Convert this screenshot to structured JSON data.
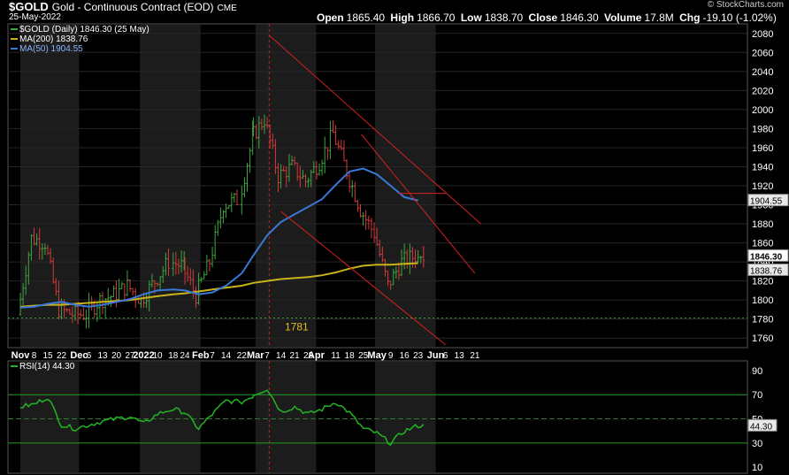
{
  "header": {
    "symbol": "$GOLD",
    "description": "Gold - Continuous Contract (EOD)",
    "exchange": "CME",
    "date": "25-May-2022",
    "brand": "© StockCharts.com",
    "ohlc": {
      "open_label": "Open",
      "open": "1865.40",
      "high_label": "High",
      "high": "1866.70",
      "low_label": "Low",
      "low": "1838.70",
      "close_label": "Close",
      "close": "1846.30",
      "volume_label": "Volume",
      "volume": "17.8M",
      "chg_label": "Chg",
      "chg": "-19.10 (-1.02%)"
    }
  },
  "colors": {
    "background": "#000000",
    "up_bar": "#3ea63e",
    "down_bar": "#d43a3a",
    "ma200": "#c8b41a",
    "ma50": "#3a78d8",
    "channel": "#d42020",
    "rsi_line": "#22b422",
    "band_shade": "#1c1c1c"
  },
  "chart_data": [
    {
      "type": "line",
      "panel": "price",
      "title": "$GOLD (Daily) 1846.30 (25 May)",
      "legend": [
        {
          "name": "$GOLD (Daily) 1846.30 (25 May)",
          "color": "#3ea63e"
        },
        {
          "name": "MA(200) 1838.76",
          "color": "#c8b41a"
        },
        {
          "name": "MA(50) 1904.55",
          "color": "#3a78d8"
        }
      ],
      "ylim": [
        1750,
        2090
      ],
      "yticks": [
        1760,
        1780,
        1800,
        1820,
        1840,
        1860,
        1880,
        1900,
        1920,
        1940,
        1960,
        1980,
        2000,
        2020,
        2040,
        2060,
        2080
      ],
      "x_axis_labels": [
        "Nov",
        "8",
        "15",
        "22",
        "Dec",
        "6",
        "13",
        "20",
        "27",
        "2022",
        "10",
        "18",
        "24",
        "Feb",
        "7",
        "14",
        "22",
        "Mar",
        "7",
        "14",
        "21",
        "28",
        "Apr",
        "11",
        "18",
        "25",
        "May",
        "9",
        "16",
        "23",
        "Jun",
        "6",
        "13",
        "21"
      ],
      "major_labels": [
        "Nov",
        "Dec",
        "2022",
        "Feb",
        "Mar",
        "Apr",
        "May",
        "Jun"
      ],
      "x": [
        "2021-11-01",
        "2021-11-08",
        "2021-11-15",
        "2021-11-22",
        "2021-11-29",
        "2021-12-06",
        "2021-12-13",
        "2021-12-20",
        "2021-12-27",
        "2022-01-03",
        "2022-01-10",
        "2022-01-18",
        "2022-01-24",
        "2022-01-31",
        "2022-02-07",
        "2022-02-14",
        "2022-02-22",
        "2022-02-28",
        "2022-03-07",
        "2022-03-14",
        "2022-03-21",
        "2022-03-28",
        "2022-04-04",
        "2022-04-11",
        "2022-04-18",
        "2022-04-25",
        "2022-05-02",
        "2022-05-09",
        "2022-05-16",
        "2022-05-23"
      ],
      "series": [
        {
          "name": "$GOLD",
          "values": [
            1785,
            1865,
            1860,
            1790,
            1785,
            1785,
            1800,
            1805,
            1815,
            1800,
            1820,
            1840,
            1835,
            1805,
            1840,
            1900,
            1905,
            1970,
            1990,
            1930,
            1940,
            1925,
            1945,
            1975,
            1935,
            1895,
            1870,
            1815,
            1840,
            1846.3
          ]
        },
        {
          "name": "MA(200)",
          "values": [
            1793,
            1794,
            1795,
            1795,
            1796,
            1797,
            1798,
            1799,
            1800,
            1802,
            1804,
            1806,
            1807,
            1809,
            1811,
            1813,
            1815,
            1818,
            1820,
            1822,
            1823,
            1824,
            1826,
            1829,
            1833,
            1836,
            1837,
            1837,
            1838,
            1838.76
          ]
        },
        {
          "name": "MA(50)",
          "values": [
            1792,
            1793,
            1796,
            1798,
            1795,
            1793,
            1795,
            1798,
            1801,
            1806,
            1810,
            1811,
            1810,
            1806,
            1808,
            1815,
            1828,
            1847,
            1868,
            1882,
            1890,
            1898,
            1906,
            1921,
            1935,
            1938,
            1932,
            1920,
            1908,
            1904.55
          ]
        }
      ],
      "annotations": [
        {
          "text": "1781",
          "value": 1781
        }
      ],
      "value_tags": [
        {
          "label": "1904.55",
          "value": 1904.55
        },
        {
          "label": "1846.30",
          "value": 1846.3
        },
        {
          "label": "1838.76",
          "value": 1838.76
        }
      ]
    },
    {
      "type": "line",
      "panel": "indicator",
      "title": "RSI(14) 44.30",
      "legend": [
        {
          "name": "RSI(14) 44.30",
          "color": "#22b422"
        }
      ],
      "ylim": [
        5,
        98
      ],
      "yticks": [
        10,
        30,
        50,
        70,
        90
      ],
      "reference_lines": [
        30,
        50,
        70
      ],
      "x": [
        "2021-11-01",
        "2021-11-08",
        "2021-11-15",
        "2021-11-22",
        "2021-11-29",
        "2021-12-06",
        "2021-12-13",
        "2021-12-20",
        "2021-12-27",
        "2022-01-03",
        "2022-01-10",
        "2022-01-18",
        "2022-01-24",
        "2022-01-31",
        "2022-02-07",
        "2022-02-14",
        "2022-02-22",
        "2022-02-28",
        "2022-03-07",
        "2022-03-14",
        "2022-03-21",
        "2022-03-28",
        "2022-04-04",
        "2022-04-11",
        "2022-04-18",
        "2022-04-25",
        "2022-05-02",
        "2022-05-09",
        "2022-05-16",
        "2022-05-23"
      ],
      "series": [
        {
          "name": "RSI(14)",
          "values": [
            60,
            62,
            68,
            45,
            42,
            45,
            48,
            50,
            52,
            46,
            54,
            58,
            55,
            42,
            54,
            65,
            64,
            70,
            75,
            56,
            60,
            54,
            58,
            64,
            55,
            42,
            38,
            30,
            40,
            44.3
          ]
        }
      ],
      "value_tags": [
        {
          "label": "44.30",
          "value": 44.3
        }
      ]
    }
  ]
}
